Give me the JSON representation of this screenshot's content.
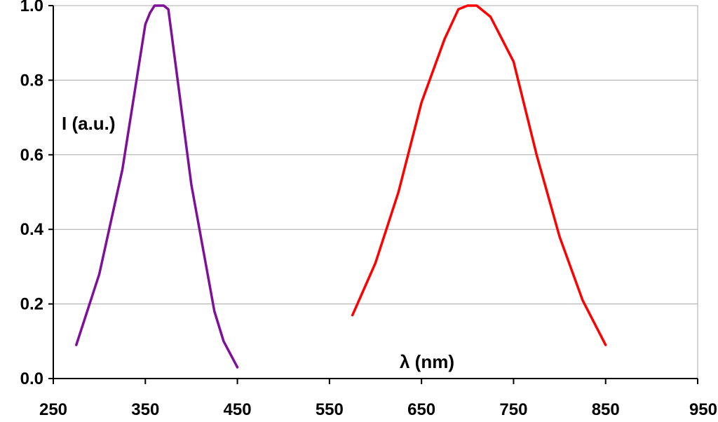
{
  "chart_data": {
    "type": "line",
    "title": "",
    "xlabel": "λ (nm)",
    "ylabel": "I (a.u.)",
    "xlim": [
      250,
      950
    ],
    "ylim": [
      0,
      1.0
    ],
    "x_ticks": [
      "250",
      "350",
      "450",
      "550",
      "650",
      "750",
      "850",
      "950"
    ],
    "y_ticks": [
      "0.0",
      "0.2",
      "0.4",
      "0.6",
      "0.8",
      "1.0"
    ],
    "grid": true,
    "legend": "none",
    "series": [
      {
        "color": "#7f0f9a",
        "points": [
          [
            275,
            0.09
          ],
          [
            300,
            0.28
          ],
          [
            325,
            0.56
          ],
          [
            350,
            0.95
          ],
          [
            355,
            0.98
          ],
          [
            360,
            1.0
          ],
          [
            365,
            1.0
          ],
          [
            370,
            1.0
          ],
          [
            375,
            0.99
          ],
          [
            400,
            0.52
          ],
          [
            425,
            0.18
          ],
          [
            435,
            0.1
          ],
          [
            450,
            0.03
          ]
        ]
      },
      {
        "color": "#ff0000",
        "points": [
          [
            575,
            0.17
          ],
          [
            600,
            0.31
          ],
          [
            625,
            0.5
          ],
          [
            650,
            0.74
          ],
          [
            675,
            0.91
          ],
          [
            690,
            0.99
          ],
          [
            700,
            1.0
          ],
          [
            710,
            1.0
          ],
          [
            725,
            0.97
          ],
          [
            750,
            0.85
          ],
          [
            775,
            0.6
          ],
          [
            800,
            0.38
          ],
          [
            825,
            0.21
          ],
          [
            850,
            0.09
          ]
        ]
      }
    ]
  }
}
